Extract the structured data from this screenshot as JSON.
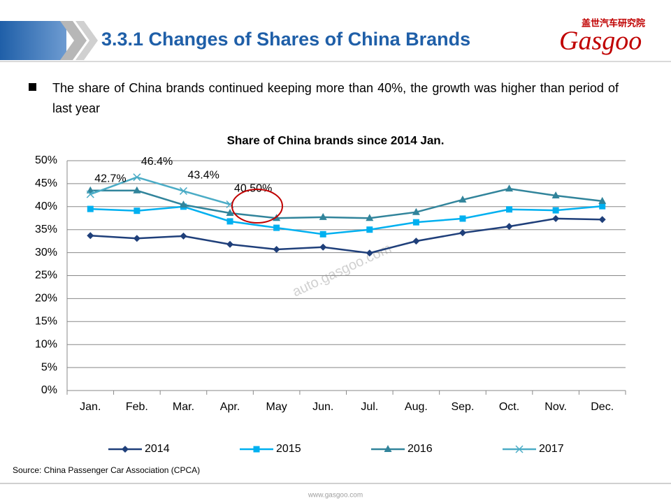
{
  "header": {
    "title": "3.3.1 Changes of Shares of China Brands",
    "logo_cn": "盖世汽车研究院",
    "logo_en": "Gasgoo"
  },
  "bullet": "The share of China brands continued keeping more than 40%, the growth was higher than period of last year",
  "watermark": "auto.gasgoo.com",
  "chart_data": {
    "type": "line",
    "title": "Share of China brands since 2014 Jan.",
    "categories": [
      "Jan.",
      "Feb.",
      "Mar.",
      "Apr.",
      "May",
      "Jun.",
      "Jul.",
      "Aug.",
      "Sep.",
      "Oct.",
      "Nov.",
      "Dec."
    ],
    "ylim": [
      0,
      50
    ],
    "yticks": [
      {
        "value": 0,
        "label": "0%"
      },
      {
        "value": 5,
        "label": "5%"
      },
      {
        "value": 10,
        "label": "10%"
      },
      {
        "value": 15,
        "label": "15%"
      },
      {
        "value": 20,
        "label": "20%"
      },
      {
        "value": 25,
        "label": "25%"
      },
      {
        "value": 30,
        "label": "30%"
      },
      {
        "value": 35,
        "label": "35%"
      },
      {
        "value": 40,
        "label": "40%"
      },
      {
        "value": 45,
        "label": "45%"
      },
      {
        "value": 50,
        "label": "50%"
      }
    ],
    "grid": true,
    "legend": "bottom",
    "series": [
      {
        "name": "2014",
        "color": "#1f3f7a",
        "marker": "diamond",
        "values": [
          33.7,
          33.1,
          33.6,
          31.8,
          30.7,
          31.2,
          29.9,
          32.5,
          34.3,
          35.7,
          37.4,
          37.2
        ]
      },
      {
        "name": "2015",
        "color": "#00b0f0",
        "marker": "square",
        "values": [
          39.5,
          39.1,
          40.0,
          36.8,
          35.4,
          34.0,
          35.0,
          36.6,
          37.4,
          39.4,
          39.2,
          40.1
        ]
      },
      {
        "name": "2016",
        "color": "#31849b",
        "marker": "triangle",
        "values": [
          43.5,
          43.5,
          40.4,
          38.6,
          37.5,
          37.7,
          37.5,
          38.8,
          41.5,
          43.9,
          42.4,
          41.2
        ]
      },
      {
        "name": "2017",
        "color": "#4bacc6",
        "marker": "x",
        "values": [
          42.7,
          46.4,
          43.4,
          40.5,
          null,
          null,
          null,
          null,
          null,
          null,
          null,
          null
        ],
        "value_labels": [
          "42.7%",
          "46.4%",
          "43.4%",
          "40.50%",
          null,
          null,
          null,
          null,
          null,
          null,
          null,
          null
        ]
      }
    ]
  },
  "source": "Source: China Passenger Car Association (CPCA)",
  "footer": "www.gasgoo.com"
}
